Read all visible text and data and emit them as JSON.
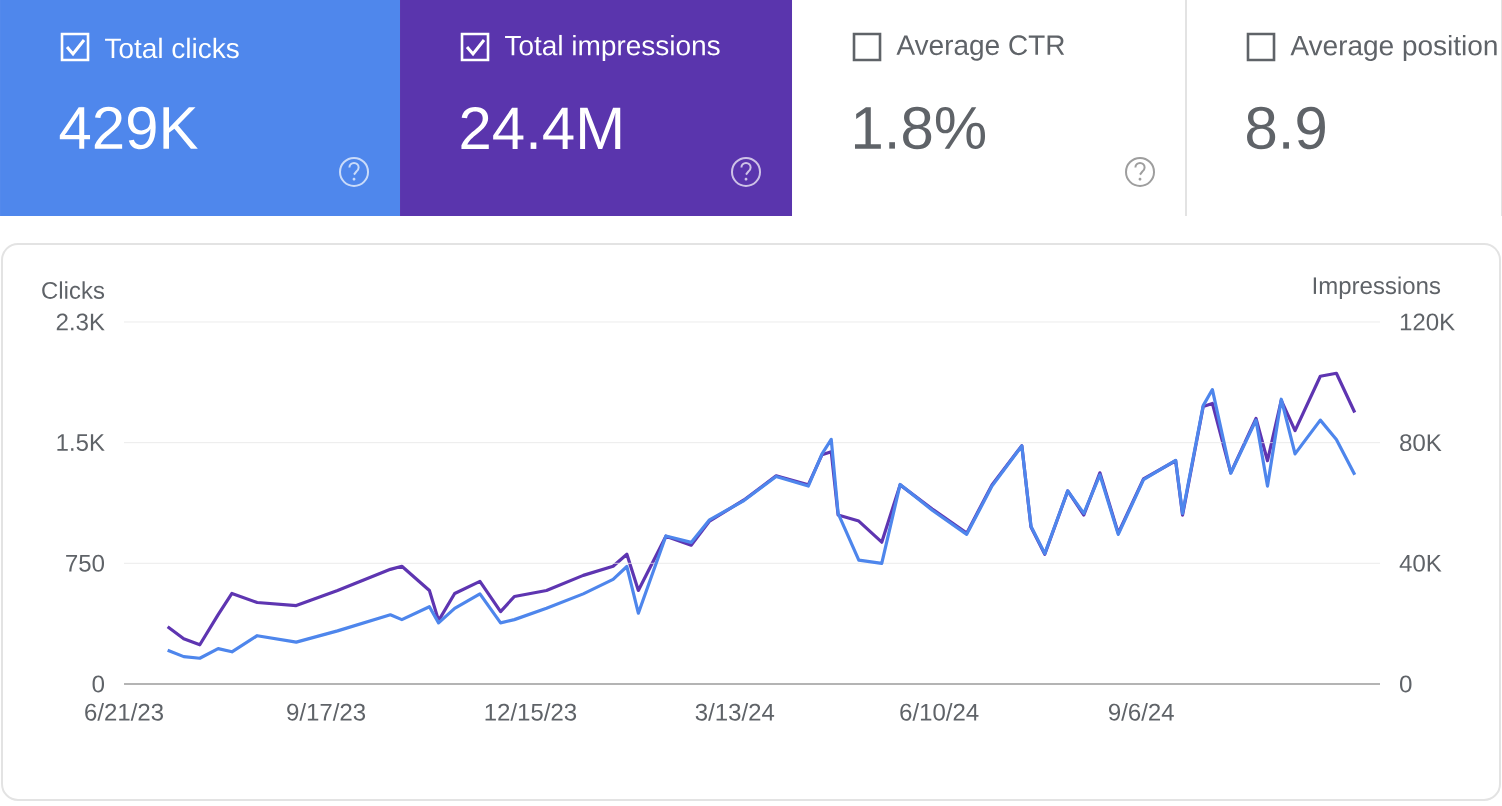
{
  "chart_data": [
    {
      "type": "other",
      "annotations": [
        "Total clicks",
        "429K",
        "Total impressions",
        "24.4M",
        "Average CTR",
        "1.8%",
        "Average position",
        "8.9"
      ]
    },
    {
      "type": "line",
      "ylabel": "Clicks",
      "y2label": "Impressions",
      "grid": "y",
      "x": [
        "2023-07-10",
        "2023-07-17",
        "2023-07-24",
        "2023-08-01",
        "2023-08-07",
        "2023-08-18",
        "2023-09-04",
        "2023-09-22",
        "2023-10-15",
        "2023-10-20",
        "2023-11-01",
        "2023-11-05",
        "2023-11-12",
        "2023-11-23",
        "2023-12-02",
        "2023-12-08",
        "2023-12-22",
        "2024-01-07",
        "2024-01-20",
        "2024-01-26",
        "2024-01-31",
        "2024-02-12",
        "2024-02-23",
        "2024-03-02",
        "2024-03-17",
        "2024-03-31",
        "2024-04-14",
        "2024-04-20",
        "2024-04-24",
        "2024-04-27",
        "2024-05-06",
        "2024-05-16",
        "2024-05-24",
        "2024-06-07",
        "2024-06-22",
        "2024-07-03",
        "2024-07-16",
        "2024-07-20",
        "2024-07-26",
        "2024-08-05",
        "2024-08-12",
        "2024-08-19",
        "2024-08-27",
        "2024-09-07",
        "2024-09-21",
        "2024-09-24",
        "2024-10-03",
        "2024-10-07",
        "2024-10-15",
        "2024-10-26",
        "2024-10-31",
        "2024-11-06",
        "2024-11-12",
        "2024-11-23",
        "2024-11-30",
        "2024-12-08"
      ],
      "series": [
        {
          "color": "#4e86ec",
          "values": [
            210,
            170,
            160,
            220,
            200,
            300,
            260,
            330,
            430,
            400,
            480,
            380,
            470,
            560,
            380,
            400,
            470,
            560,
            650,
            730,
            440,
            920,
            880,
            1020,
            1140,
            1290,
            1230,
            1430,
            1520,
            1060,
            770,
            750,
            1240,
            1080,
            930,
            1230,
            1480,
            980,
            810,
            1200,
            1060,
            1300,
            930,
            1270,
            1390,
            1060,
            1730,
            1830,
            1310,
            1640,
            1230,
            1770,
            1430,
            1640,
            1520,
            1300
          ]
        },
        {
          "color": "#5e35b1",
          "axis": "y2",
          "values": [
            19000,
            15000,
            13000,
            23000,
            30000,
            27000,
            26000,
            31000,
            38000,
            39000,
            31000,
            21000,
            30000,
            34000,
            24000,
            29000,
            31000,
            36000,
            39000,
            43000,
            31000,
            49000,
            46000,
            54000,
            61000,
            69000,
            66000,
            76000,
            77000,
            56000,
            54000,
            47000,
            66000,
            58000,
            50000,
            66000,
            79000,
            52000,
            43000,
            64000,
            56000,
            70000,
            50000,
            68000,
            74000,
            56000,
            92000,
            93000,
            70000,
            88000,
            74000,
            94000,
            84000,
            102000,
            103000,
            90000
          ]
        }
      ],
      "xlim": [
        "2023-06-21",
        "2024-12-19"
      ],
      "xticks": [
        {
          "value": "2023-06-21",
          "label": "6/21/23"
        },
        {
          "value": "2023-09-17",
          "label": "9/17/23"
        },
        {
          "value": "2023-12-15",
          "label": "12/15/23"
        },
        {
          "value": "2024-03-13",
          "label": "3/13/24"
        },
        {
          "value": "2024-06-10",
          "label": "6/10/24"
        },
        {
          "value": "2024-09-06",
          "label": "9/6/24"
        }
      ],
      "ylim": [
        0,
        2250
      ],
      "yticks": [
        0,
        750,
        {
          "value": 1500,
          "label": "1.5K"
        },
        {
          "value": 2250,
          "label": "2.3K"
        }
      ],
      "y2lim": [
        0,
        120000
      ],
      "y2ticks": [
        0,
        {
          "value": 40000,
          "label": "40K"
        },
        {
          "value": 80000,
          "label": "80K"
        },
        {
          "value": 120000,
          "label": "120K"
        }
      ]
    }
  ]
}
